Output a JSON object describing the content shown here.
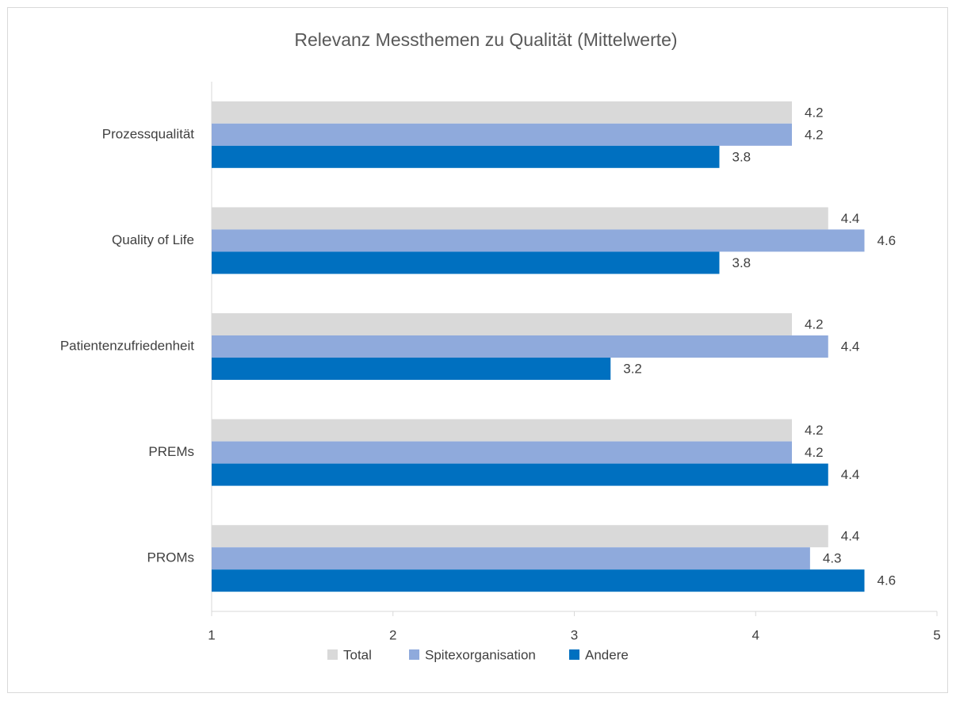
{
  "chart_data": {
    "type": "bar",
    "orientation": "horizontal",
    "title": "Relevanz Messthemen zu Qualität (Mittelwerte)",
    "categories": [
      "Prozessqualität",
      "Quality of Life",
      "Patientenzufriedenheit",
      "PREMs",
      "PROMs"
    ],
    "series": [
      {
        "name": "Total",
        "color": "#d9d9d9",
        "values": [
          4.2,
          4.4,
          4.2,
          4.2,
          4.4
        ]
      },
      {
        "name": "Spitexorganisation",
        "color": "#8faadc",
        "values": [
          4.2,
          4.6,
          4.4,
          4.2,
          4.3
        ]
      },
      {
        "name": "Andere",
        "color": "#0070c0",
        "values": [
          3.8,
          3.8,
          3.2,
          4.4,
          4.6
        ]
      }
    ],
    "xlim": [
      1,
      5
    ],
    "xticks": [
      1,
      2,
      3,
      4,
      5
    ],
    "legend": "bottom"
  }
}
